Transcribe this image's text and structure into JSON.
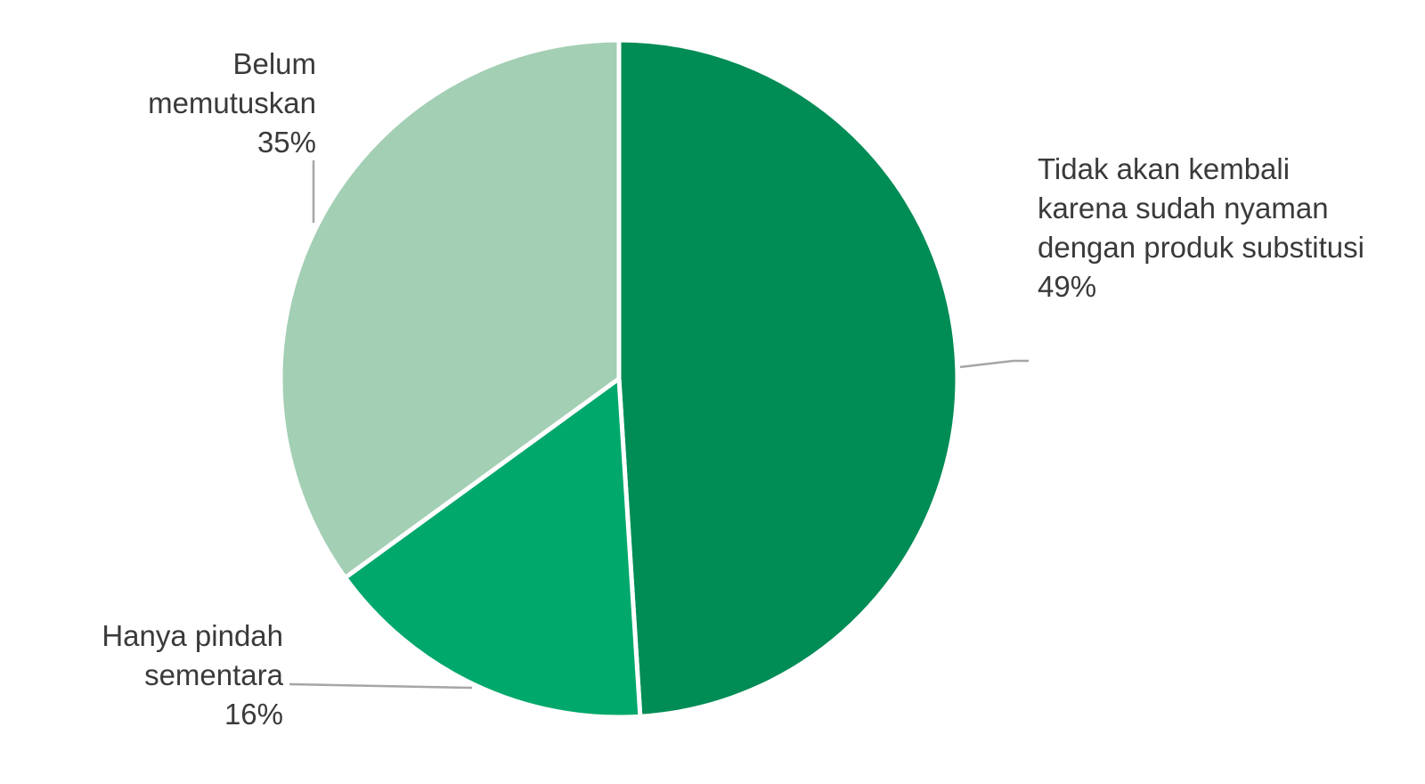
{
  "chart_data": {
    "type": "pie",
    "categories": [
      "Tidak akan kembali karena sudah nyaman dengan produk substitusi",
      "Hanya pindah sementara",
      "Belum memutuskan"
    ],
    "values": [
      49,
      16,
      35
    ],
    "value_labels": [
      "49%",
      "16%",
      "35%"
    ],
    "colors": [
      "#008c55",
      "#00a86b",
      "#a3cfb4"
    ]
  }
}
